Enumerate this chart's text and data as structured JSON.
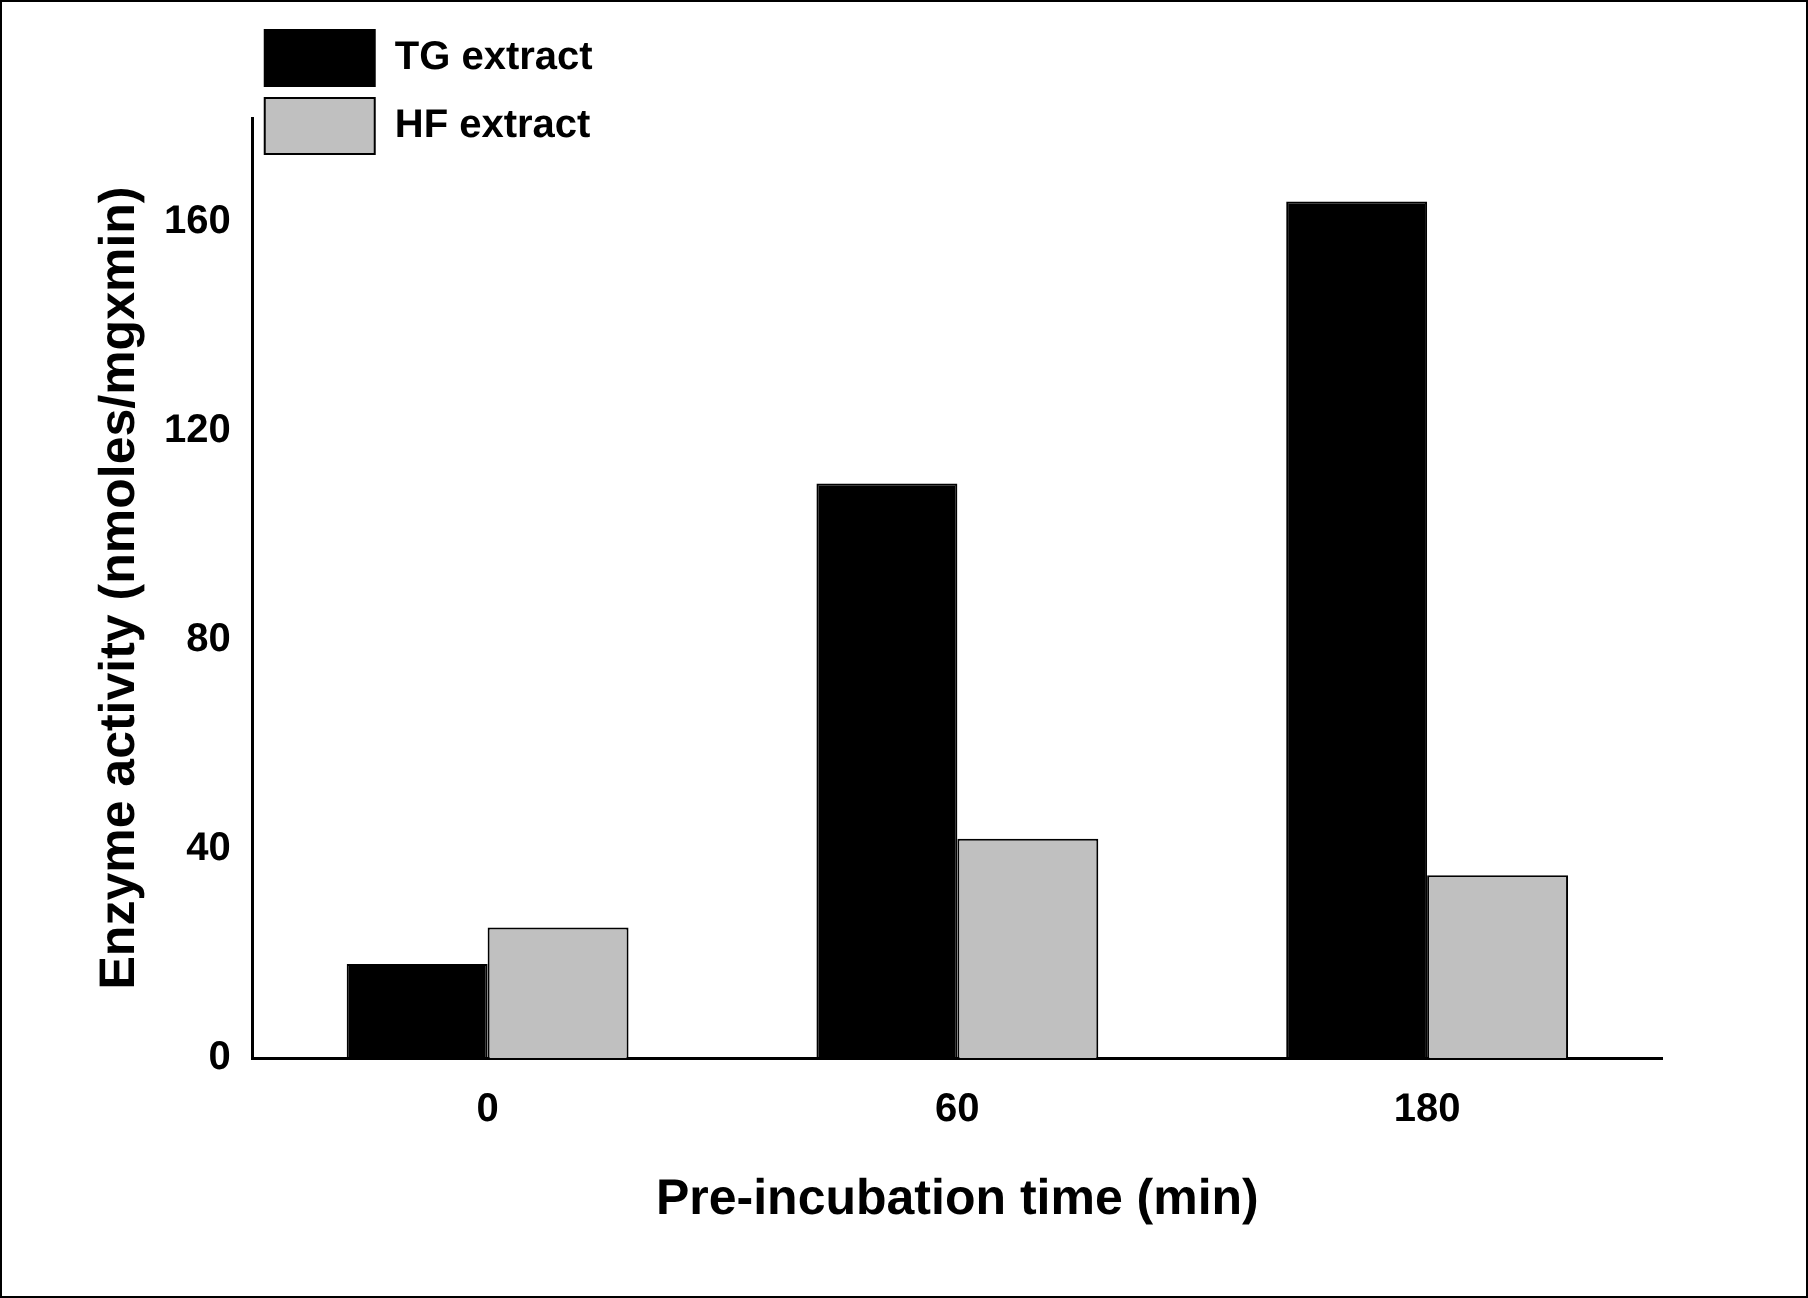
{
  "chart_data": {
    "type": "bar",
    "xlabel": "Pre-incubation time (min)",
    "ylabel": "Enzyme activity (nmoles/mgxmin)",
    "categories": [
      "0",
      "60",
      "180"
    ],
    "series": [
      {
        "name": "TG extract",
        "color": "#000000",
        "values": [
          18,
          110,
          164
        ]
      },
      {
        "name": "HF extract",
        "color": "#c0c0c0",
        "values": [
          25,
          42,
          35
        ]
      }
    ],
    "ylim": [
      0,
      180
    ],
    "yticks": [
      0,
      40,
      80,
      120,
      160
    ],
    "grid": false,
    "legend": "top left"
  }
}
